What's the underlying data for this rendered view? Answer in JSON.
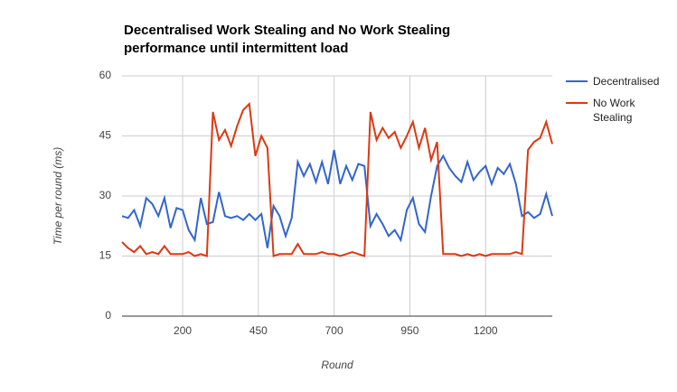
{
  "chart_data": {
    "type": "line",
    "title": "Decentralised Work Stealing and No Work Stealing performance until intermittent load",
    "x_label": "Round",
    "y_label": "Time per round (ms)",
    "x": [
      0,
      20,
      40,
      60,
      80,
      100,
      120,
      140,
      160,
      180,
      200,
      220,
      240,
      260,
      280,
      300,
      320,
      340,
      360,
      380,
      400,
      420,
      440,
      460,
      480,
      500,
      520,
      540,
      560,
      580,
      600,
      620,
      640,
      660,
      680,
      700,
      720,
      740,
      760,
      780,
      800,
      820,
      840,
      860,
      880,
      900,
      920,
      940,
      960,
      980,
      1000,
      1020,
      1040,
      1060,
      1080,
      1100,
      1120,
      1140,
      1160,
      1180,
      1200,
      1220,
      1240,
      1260,
      1280,
      1300,
      1320,
      1340,
      1360,
      1380,
      1400,
      1420
    ],
    "series": [
      {
        "name": "Decentralised",
        "color": "#3366cc",
        "values": [
          25,
          24.5,
          26.5,
          22.5,
          29.5,
          28,
          25,
          29.5,
          22,
          27,
          26.5,
          21.5,
          19,
          29.5,
          23,
          23.5,
          31,
          25,
          24.5,
          25,
          24,
          25.5,
          24,
          25.5,
          17,
          27.5,
          25,
          20,
          24.5,
          38.5,
          35,
          38,
          33.5,
          38.5,
          33,
          41.5,
          33,
          37.5,
          34,
          38,
          37.5,
          22.5,
          25.5,
          23,
          20,
          21.5,
          19,
          26.5,
          29.5,
          23,
          21,
          30,
          37.5,
          40,
          37,
          35,
          33.5,
          38.5,
          34,
          36,
          37.5,
          33,
          37,
          35.5,
          38,
          33,
          25,
          26,
          24.5,
          25.5,
          30.5,
          25
        ]
      },
      {
        "name": "No Work Stealing",
        "color": "#dc3912",
        "values": [
          18.5,
          17,
          16,
          17.5,
          15.5,
          16,
          15.5,
          17.5,
          15.5,
          15.5,
          15.5,
          16,
          15,
          15.5,
          15,
          51,
          44,
          46.5,
          42.5,
          47.5,
          51.5,
          53,
          40,
          45,
          42,
          15,
          15.5,
          15.5,
          15.5,
          18,
          15.5,
          15.5,
          15.5,
          16,
          15.5,
          15.5,
          15,
          15.5,
          16,
          15.5,
          15,
          51,
          44,
          47,
          44.5,
          46,
          42,
          45,
          48.5,
          42,
          47,
          39,
          43.5,
          15.5,
          15.5,
          15.5,
          15,
          15.5,
          15,
          15.5,
          15,
          15.5,
          15.5,
          15.5,
          15.5,
          16,
          15.5,
          41.5,
          43.5,
          44.5,
          48.5,
          43
        ]
      }
    ],
    "xlim": [
      0,
      1420
    ],
    "xticks": [
      200,
      450,
      700,
      950,
      1200
    ],
    "ylim": [
      0,
      60
    ],
    "yticks": [
      0,
      15,
      30,
      45,
      60
    ],
    "grid": true,
    "legend": "right"
  }
}
